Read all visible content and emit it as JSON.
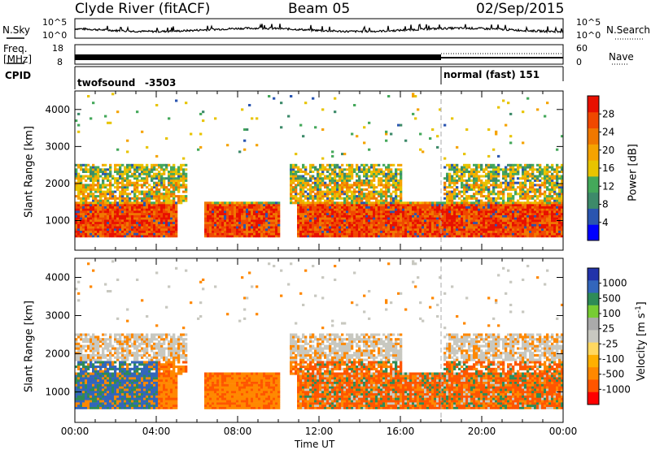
{
  "header": {
    "station": "Clyde River (fitACF)",
    "beam": "Beam 05",
    "date": "02/Sep/2015"
  },
  "nsky_panel": {
    "left_label": "N.Sky",
    "right_label": "N.Search",
    "ticks_left": [
      "10^5",
      "10^0"
    ],
    "ticks_right": [
      "10^5",
      "10^0"
    ]
  },
  "freq_panel": {
    "left_label_1": "Freq.",
    "left_label_2": "[MHz]",
    "right_label": "Nave",
    "ticks_left": [
      "18",
      "8"
    ],
    "ticks_right": [
      "60",
      "0"
    ]
  },
  "cpid_panel": {
    "label": "CPID",
    "segments": [
      {
        "name": "twofsound",
        "id": "-3503",
        "start_hour": 0,
        "end_hour": 18
      },
      {
        "name": "normal (fast)",
        "id": "151",
        "start_hour": 18,
        "end_hour": 24
      }
    ]
  },
  "colors": {
    "power": [
      "#0000ff",
      "#2a55b0",
      "#3d8a6a",
      "#44a85a",
      "#e8c400",
      "#f5a300",
      "#f07800",
      "#f04800",
      "#e81000"
    ],
    "velocity": [
      "#ff0000",
      "#ff5500",
      "#ff8800",
      "#ffb000",
      "#ffd860",
      "#c8c8c0",
      "#aaaaaa",
      "#77cc33",
      "#2e8b57",
      "#3366bb",
      "#2233aa"
    ]
  },
  "chart_data": [
    {
      "type": "heatmap",
      "panel": "power",
      "ylabel": "Slant Range [km]",
      "yticks": [
        1000,
        2000,
        3000,
        4000
      ],
      "ylim": [
        200,
        4500
      ],
      "xlim": [
        0,
        24
      ],
      "colorbar_label": "Power [dB]",
      "colorbar_ticks": [
        4,
        8,
        12,
        16,
        20,
        24,
        28
      ],
      "colorbar_range": [
        0,
        32
      ]
    },
    {
      "type": "heatmap",
      "panel": "velocity",
      "ylabel": "Slant Range [km]",
      "yticks": [
        1000,
        2000,
        3000,
        4000
      ],
      "ylim": [
        200,
        4500
      ],
      "xlim": [
        0,
        24
      ],
      "colorbar_label": "Velocity [m s^-1]",
      "colorbar_ticks": [
        "1000",
        "500",
        "100",
        "25",
        "-25",
        "-100",
        "-500",
        "-1000"
      ]
    }
  ],
  "x_axis": {
    "ticks": [
      "00:00",
      "04:00",
      "08:00",
      "12:00",
      "16:00",
      "20:00",
      "00:00"
    ],
    "label": "Time UT"
  }
}
